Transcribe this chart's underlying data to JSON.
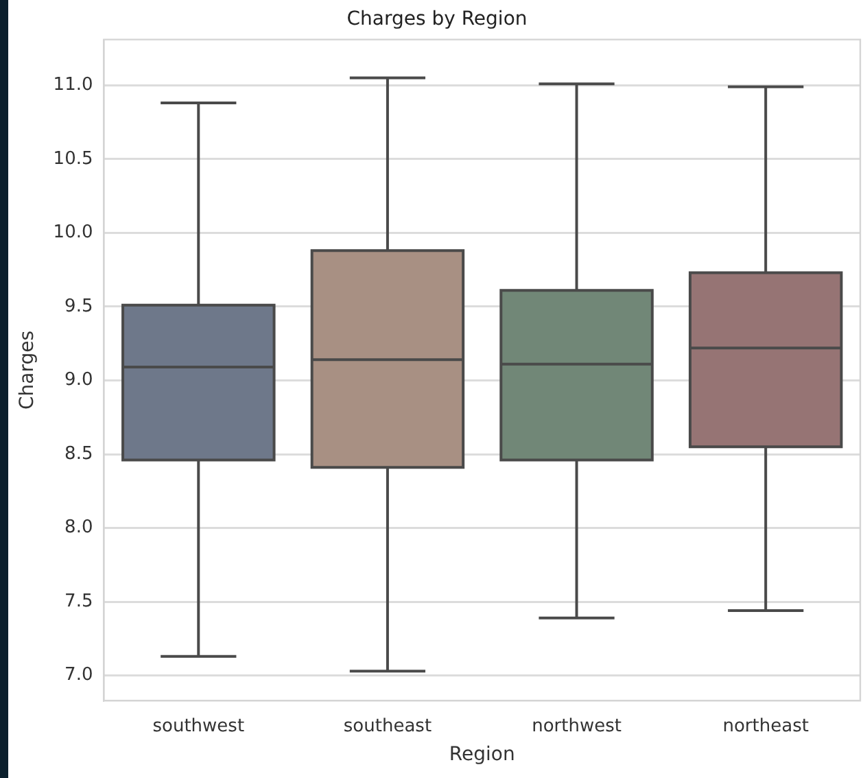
{
  "chart_data": {
    "type": "box",
    "title": "Charges by Region",
    "xlabel": "Region",
    "ylabel": "Charges",
    "categories": [
      "southwest",
      "southeast",
      "northwest",
      "northeast"
    ],
    "boxes": [
      {
        "low": 7.13,
        "q1": 8.46,
        "median": 9.09,
        "q3": 9.51,
        "high": 10.88
      },
      {
        "low": 7.03,
        "q1": 8.41,
        "median": 9.14,
        "q3": 9.88,
        "high": 11.05
      },
      {
        "low": 7.39,
        "q1": 8.46,
        "median": 9.11,
        "q3": 9.61,
        "high": 11.01
      },
      {
        "low": 7.44,
        "q1": 8.55,
        "median": 9.22,
        "q3": 9.73,
        "high": 10.99
      }
    ],
    "colors": [
      "#6e788a",
      "#a89083",
      "#718777",
      "#967474"
    ],
    "ylim": [
      6.83,
      11.31
    ],
    "yticks": [
      {
        "value": 7,
        "label": "7.0"
      },
      7.5,
      {
        "value": 8,
        "label": "8.0"
      },
      8.5,
      {
        "value": 9,
        "label": "9.0"
      },
      9.5,
      {
        "value": 10,
        "label": "10.0"
      },
      10.5,
      {
        "value": 11,
        "label": "11.0"
      }
    ],
    "grid": "y"
  }
}
